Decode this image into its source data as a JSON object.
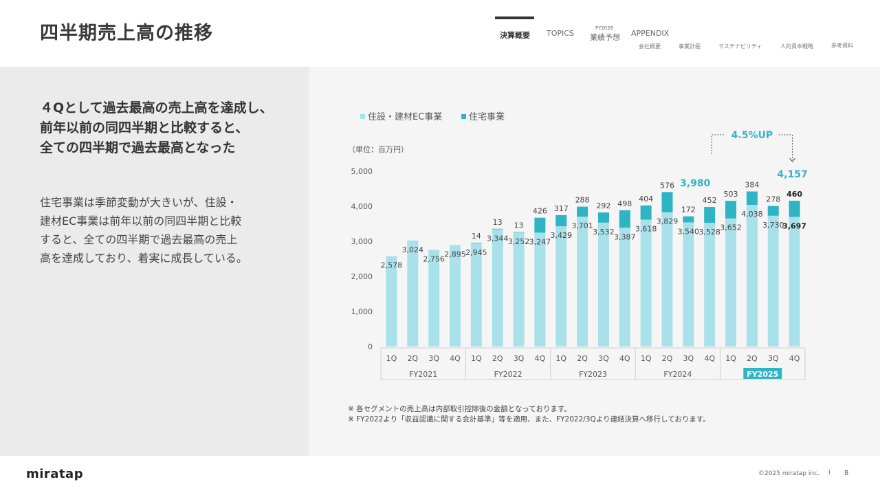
{
  "header": {
    "title": "四半期売上高の推移",
    "nav": [
      {
        "label": "決算概要",
        "active": true
      },
      {
        "label": "TOPICS"
      },
      {
        "label": "業績予想",
        "sup": "FY2026"
      },
      {
        "label": "APPENDIX"
      }
    ],
    "sub_nav": [
      "会社概要",
      "事業計画",
      "サステナビリティ",
      "人的資本戦略",
      "参考資料"
    ]
  },
  "left": {
    "headline": [
      "４Qとして過去最高の売上高を達成し、",
      "前年以前の同四半期と比較すると、",
      "全ての四半期で過去最高となった"
    ],
    "body": [
      "住宅事業は季節変動が大きいが、住設・",
      "建材EC事業は前年以前の同四半期と比較",
      "すると、全ての四半期で過去最高の売上",
      "高を達成しており、着実に成長している。"
    ]
  },
  "chart_data": {
    "type": "bar",
    "stacked": true,
    "unit_label": "（単位：百万円）",
    "legend_position": "top-left",
    "categories": [
      "1Q",
      "2Q",
      "3Q",
      "4Q",
      "1Q",
      "2Q",
      "3Q",
      "4Q",
      "1Q",
      "2Q",
      "3Q",
      "4Q",
      "1Q",
      "2Q",
      "3Q",
      "4Q",
      "1Q",
      "2Q",
      "3Q",
      "4Q"
    ],
    "groups": [
      {
        "label": "FY2021",
        "count": 4
      },
      {
        "label": "FY2022",
        "count": 4
      },
      {
        "label": "FY2023",
        "count": 4
      },
      {
        "label": "FY2024",
        "count": 4
      },
      {
        "label": "FY2025",
        "count": 4,
        "highlight": true
      }
    ],
    "series": [
      {
        "name": "住設・建材EC事業",
        "color": "#a9e1ea",
        "values": [
          2578,
          3024,
          2756,
          2895,
          2945,
          3344,
          3252,
          3247,
          3429,
          3701,
          3532,
          3387,
          3618,
          3829,
          3540,
          3528,
          3652,
          4038,
          3730,
          3697
        ]
      },
      {
        "name": "住宅事業",
        "color": "#2eb4c3",
        "values": [
          0,
          0,
          0,
          0,
          14,
          13,
          13,
          426,
          317,
          288,
          292,
          498,
          404,
          576,
          172,
          452,
          503,
          384,
          278,
          460
        ]
      }
    ],
    "yticks": [
      "0",
      "1,000",
      "2,000",
      "3,000",
      "4,000",
      "5,000"
    ],
    "ylim": [
      0,
      5000
    ],
    "grid": false,
    "annotations": {
      "growth": "4.5%UP",
      "total_prev": "3,980",
      "total_curr": "4,157"
    }
  },
  "notes": [
    "※ 各セグメントの売上高は内部取引控除後の金額となっております。",
    "※ FY2022より「収益認識に関する会計基準」等を適用、また、FY2022/3Qより連結決算へ移行しております。"
  ],
  "footer": {
    "logo": "miratap",
    "copyright": "©2025 miratap inc.",
    "separator": "I",
    "page": "8"
  },
  "colors": {
    "accent": "#2eb4c3",
    "light": "#a9e1ea",
    "annotation": "#35b3cc"
  }
}
